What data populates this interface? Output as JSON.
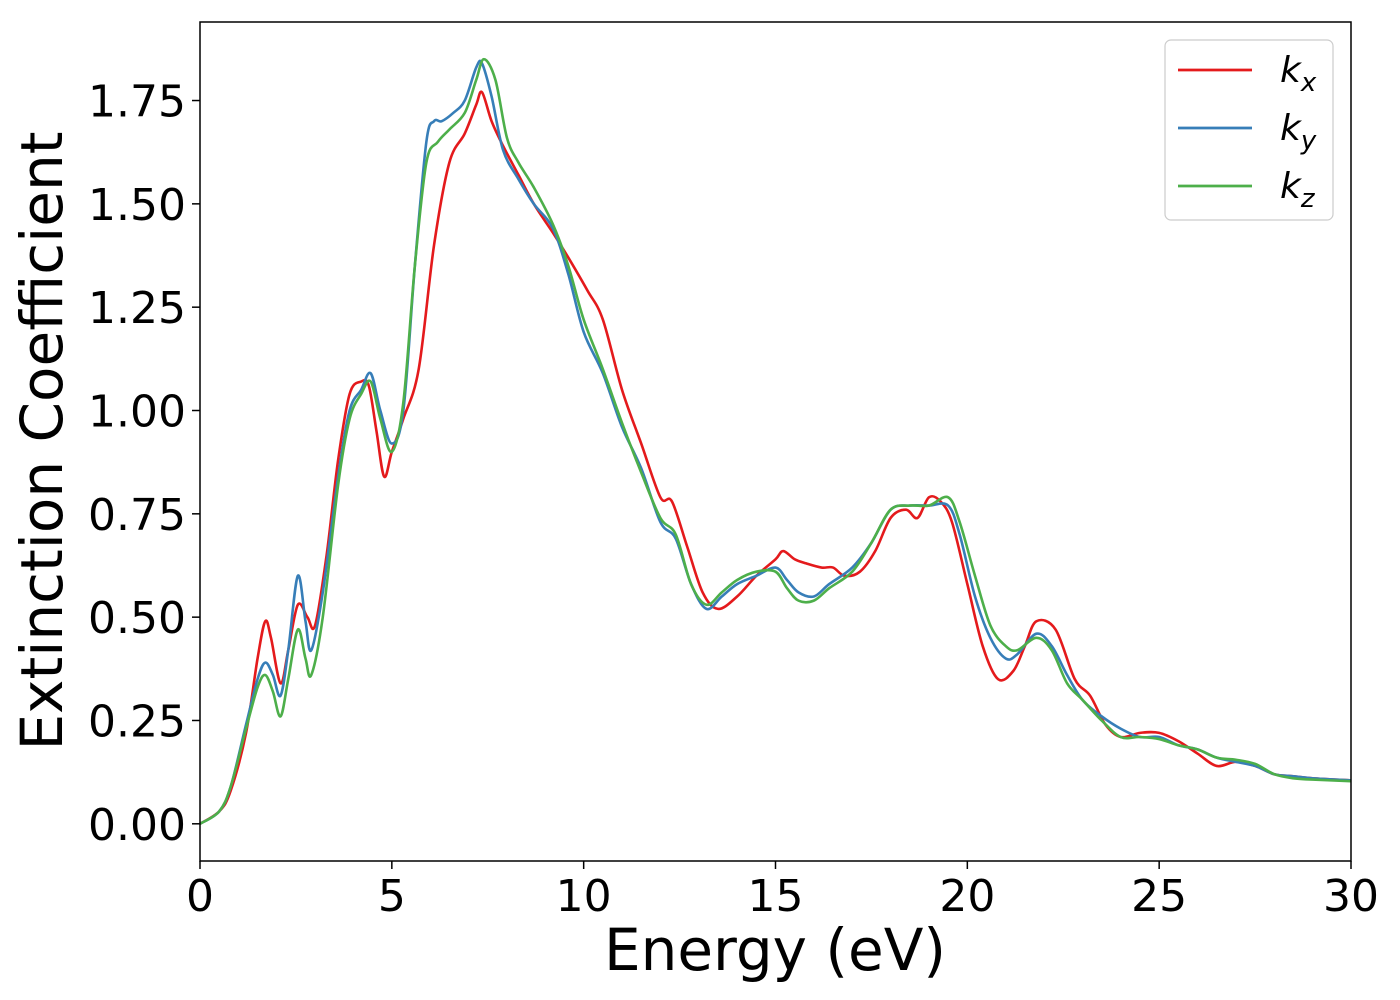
{
  "chart_data": {
    "type": "line",
    "title": "",
    "xlabel": "Energy (eV)",
    "ylabel": "Extinction Coefficient",
    "xlim": [
      0,
      30
    ],
    "ylim": [
      -0.09,
      1.94
    ],
    "xticks": [
      0,
      5,
      10,
      15,
      20,
      25,
      30
    ],
    "xtick_labels": [
      "0",
      "5",
      "10",
      "15",
      "20",
      "25",
      "30"
    ],
    "yticks": [
      0,
      0.25,
      0.5,
      0.75,
      1.0,
      1.25,
      1.5,
      1.75
    ],
    "ytick_labels": [
      "0.00",
      "0.25",
      "0.50",
      "0.75",
      "1.00",
      "1.25",
      "1.50",
      "1.75"
    ],
    "grid": false,
    "legend_position": "top-right",
    "series": [
      {
        "name": "k_x",
        "label_base": "k",
        "label_sub": "x",
        "color": "#e41a1c",
        "points": [
          [
            0,
            0.0
          ],
          [
            0.5,
            0.03
          ],
          [
            0.8,
            0.08
          ],
          [
            1.2,
            0.22
          ],
          [
            1.5,
            0.4
          ],
          [
            1.7,
            0.49
          ],
          [
            1.85,
            0.45
          ],
          [
            2.1,
            0.34
          ],
          [
            2.3,
            0.42
          ],
          [
            2.55,
            0.53
          ],
          [
            2.8,
            0.5
          ],
          [
            3.0,
            0.48
          ],
          [
            3.3,
            0.65
          ],
          [
            3.6,
            0.88
          ],
          [
            3.9,
            1.04
          ],
          [
            4.2,
            1.07
          ],
          [
            4.4,
            1.06
          ],
          [
            4.6,
            0.95
          ],
          [
            4.8,
            0.84
          ],
          [
            5.0,
            0.9
          ],
          [
            5.3,
            0.98
          ],
          [
            5.7,
            1.1
          ],
          [
            6.1,
            1.4
          ],
          [
            6.5,
            1.6
          ],
          [
            6.9,
            1.67
          ],
          [
            7.2,
            1.74
          ],
          [
            7.35,
            1.77
          ],
          [
            7.6,
            1.7
          ],
          [
            7.9,
            1.64
          ],
          [
            8.3,
            1.57
          ],
          [
            8.7,
            1.5
          ],
          [
            9.2,
            1.43
          ],
          [
            9.6,
            1.37
          ],
          [
            10.1,
            1.29
          ],
          [
            10.5,
            1.22
          ],
          [
            11.0,
            1.05
          ],
          [
            11.5,
            0.92
          ],
          [
            12.0,
            0.79
          ],
          [
            12.3,
            0.78
          ],
          [
            12.7,
            0.67
          ],
          [
            13.1,
            0.56
          ],
          [
            13.5,
            0.52
          ],
          [
            14.0,
            0.55
          ],
          [
            14.5,
            0.6
          ],
          [
            15.0,
            0.64
          ],
          [
            15.2,
            0.66
          ],
          [
            15.5,
            0.64
          ],
          [
            15.8,
            0.63
          ],
          [
            16.2,
            0.62
          ],
          [
            16.5,
            0.62
          ],
          [
            16.8,
            0.6
          ],
          [
            17.2,
            0.61
          ],
          [
            17.6,
            0.66
          ],
          [
            18.0,
            0.74
          ],
          [
            18.4,
            0.76
          ],
          [
            18.7,
            0.74
          ],
          [
            19.0,
            0.79
          ],
          [
            19.3,
            0.78
          ],
          [
            19.6,
            0.73
          ],
          [
            20.0,
            0.58
          ],
          [
            20.4,
            0.43
          ],
          [
            20.8,
            0.35
          ],
          [
            21.2,
            0.37
          ],
          [
            21.5,
            0.43
          ],
          [
            21.8,
            0.49
          ],
          [
            22.3,
            0.47
          ],
          [
            22.8,
            0.35
          ],
          [
            23.2,
            0.31
          ],
          [
            23.6,
            0.24
          ],
          [
            24.0,
            0.21
          ],
          [
            24.5,
            0.22
          ],
          [
            25.0,
            0.22
          ],
          [
            25.5,
            0.2
          ],
          [
            26.0,
            0.17
          ],
          [
            26.5,
            0.14
          ],
          [
            27.0,
            0.15
          ],
          [
            27.5,
            0.14
          ],
          [
            28.0,
            0.12
          ],
          [
            28.5,
            0.115
          ],
          [
            29.0,
            0.11
          ],
          [
            30.0,
            0.105
          ]
        ]
      },
      {
        "name": "k_y",
        "label_base": "k",
        "label_sub": "y",
        "color": "#377eb8",
        "points": [
          [
            0,
            0.0
          ],
          [
            0.5,
            0.03
          ],
          [
            0.8,
            0.09
          ],
          [
            1.2,
            0.24
          ],
          [
            1.5,
            0.35
          ],
          [
            1.7,
            0.39
          ],
          [
            1.9,
            0.36
          ],
          [
            2.1,
            0.31
          ],
          [
            2.3,
            0.42
          ],
          [
            2.55,
            0.6
          ],
          [
            2.75,
            0.49
          ],
          [
            2.9,
            0.42
          ],
          [
            3.2,
            0.56
          ],
          [
            3.6,
            0.84
          ],
          [
            3.9,
            1.0
          ],
          [
            4.2,
            1.05
          ],
          [
            4.45,
            1.09
          ],
          [
            4.7,
            1.0
          ],
          [
            5.0,
            0.92
          ],
          [
            5.3,
            1.0
          ],
          [
            5.6,
            1.35
          ],
          [
            5.9,
            1.65
          ],
          [
            6.1,
            1.7
          ],
          [
            6.3,
            1.7
          ],
          [
            6.6,
            1.72
          ],
          [
            6.9,
            1.75
          ],
          [
            7.2,
            1.83
          ],
          [
            7.35,
            1.84
          ],
          [
            7.6,
            1.76
          ],
          [
            7.9,
            1.63
          ],
          [
            8.3,
            1.56
          ],
          [
            8.7,
            1.5
          ],
          [
            9.2,
            1.44
          ],
          [
            9.6,
            1.33
          ],
          [
            10.0,
            1.19
          ],
          [
            10.5,
            1.09
          ],
          [
            11.0,
            0.96
          ],
          [
            11.5,
            0.86
          ],
          [
            12.0,
            0.73
          ],
          [
            12.4,
            0.69
          ],
          [
            12.8,
            0.58
          ],
          [
            13.2,
            0.52
          ],
          [
            13.6,
            0.55
          ],
          [
            14.0,
            0.58
          ],
          [
            14.5,
            0.6
          ],
          [
            15.0,
            0.62
          ],
          [
            15.3,
            0.59
          ],
          [
            15.6,
            0.56
          ],
          [
            16.0,
            0.55
          ],
          [
            16.4,
            0.58
          ],
          [
            17.0,
            0.62
          ],
          [
            17.5,
            0.68
          ],
          [
            18.0,
            0.76
          ],
          [
            18.5,
            0.77
          ],
          [
            19.0,
            0.77
          ],
          [
            19.5,
            0.77
          ],
          [
            19.8,
            0.7
          ],
          [
            20.2,
            0.55
          ],
          [
            20.6,
            0.45
          ],
          [
            21.0,
            0.4
          ],
          [
            21.3,
            0.41
          ],
          [
            21.8,
            0.46
          ],
          [
            22.2,
            0.43
          ],
          [
            22.6,
            0.36
          ],
          [
            23.0,
            0.3
          ],
          [
            23.5,
            0.26
          ],
          [
            24.0,
            0.23
          ],
          [
            24.5,
            0.21
          ],
          [
            25.0,
            0.21
          ],
          [
            25.5,
            0.19
          ],
          [
            26.0,
            0.18
          ],
          [
            26.5,
            0.16
          ],
          [
            27.0,
            0.15
          ],
          [
            27.5,
            0.14
          ],
          [
            28.0,
            0.12
          ],
          [
            28.5,
            0.115
          ],
          [
            29.0,
            0.11
          ],
          [
            30.0,
            0.105
          ]
        ]
      },
      {
        "name": "k_z",
        "label_base": "k",
        "label_sub": "z",
        "color": "#4daf4a",
        "points": [
          [
            0,
            0.0
          ],
          [
            0.5,
            0.03
          ],
          [
            0.8,
            0.09
          ],
          [
            1.2,
            0.23
          ],
          [
            1.5,
            0.33
          ],
          [
            1.7,
            0.36
          ],
          [
            1.9,
            0.32
          ],
          [
            2.1,
            0.26
          ],
          [
            2.3,
            0.35
          ],
          [
            2.55,
            0.47
          ],
          [
            2.75,
            0.4
          ],
          [
            2.9,
            0.36
          ],
          [
            3.2,
            0.5
          ],
          [
            3.6,
            0.82
          ],
          [
            3.9,
            0.98
          ],
          [
            4.2,
            1.04
          ],
          [
            4.45,
            1.07
          ],
          [
            4.7,
            0.98
          ],
          [
            5.0,
            0.9
          ],
          [
            5.3,
            1.02
          ],
          [
            5.6,
            1.35
          ],
          [
            5.9,
            1.6
          ],
          [
            6.2,
            1.65
          ],
          [
            6.5,
            1.68
          ],
          [
            6.9,
            1.72
          ],
          [
            7.2,
            1.8
          ],
          [
            7.4,
            1.85
          ],
          [
            7.7,
            1.8
          ],
          [
            8.0,
            1.66
          ],
          [
            8.3,
            1.6
          ],
          [
            8.7,
            1.54
          ],
          [
            9.2,
            1.45
          ],
          [
            9.6,
            1.35
          ],
          [
            10.0,
            1.22
          ],
          [
            10.5,
            1.1
          ],
          [
            11.0,
            0.97
          ],
          [
            11.5,
            0.85
          ],
          [
            12.0,
            0.74
          ],
          [
            12.4,
            0.7
          ],
          [
            12.8,
            0.58
          ],
          [
            13.2,
            0.53
          ],
          [
            13.6,
            0.56
          ],
          [
            14.0,
            0.59
          ],
          [
            14.5,
            0.61
          ],
          [
            15.0,
            0.61
          ],
          [
            15.3,
            0.57
          ],
          [
            15.6,
            0.54
          ],
          [
            16.0,
            0.54
          ],
          [
            16.4,
            0.57
          ],
          [
            17.0,
            0.61
          ],
          [
            17.5,
            0.68
          ],
          [
            18.0,
            0.76
          ],
          [
            18.5,
            0.77
          ],
          [
            19.0,
            0.77
          ],
          [
            19.5,
            0.79
          ],
          [
            19.8,
            0.73
          ],
          [
            20.2,
            0.6
          ],
          [
            20.6,
            0.48
          ],
          [
            21.0,
            0.43
          ],
          [
            21.3,
            0.42
          ],
          [
            21.8,
            0.45
          ],
          [
            22.2,
            0.42
          ],
          [
            22.6,
            0.34
          ],
          [
            23.0,
            0.3
          ],
          [
            23.5,
            0.25
          ],
          [
            24.0,
            0.21
          ],
          [
            24.5,
            0.21
          ],
          [
            25.0,
            0.205
          ],
          [
            25.5,
            0.19
          ],
          [
            26.0,
            0.18
          ],
          [
            26.5,
            0.16
          ],
          [
            27.0,
            0.155
          ],
          [
            27.5,
            0.145
          ],
          [
            28.0,
            0.12
          ],
          [
            28.5,
            0.11
          ],
          [
            29.0,
            0.107
          ],
          [
            30.0,
            0.103
          ]
        ]
      }
    ]
  }
}
